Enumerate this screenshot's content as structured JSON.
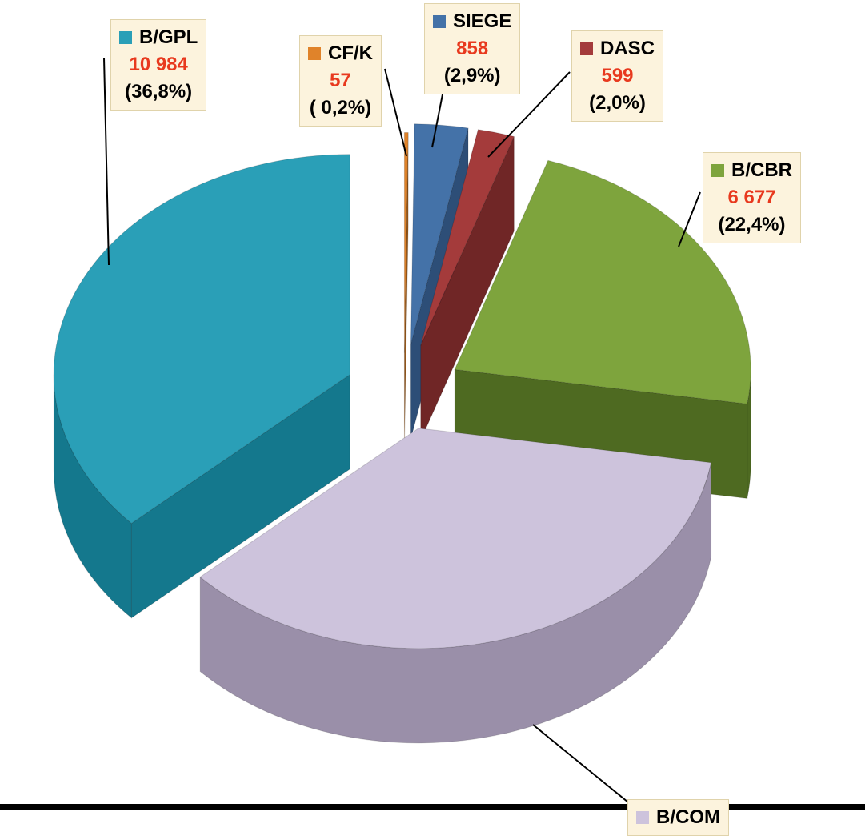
{
  "style": {
    "background": "#ffffff",
    "callout_bg": "#fcf3dd",
    "callout_border": "#e0d3ab",
    "value_color": "#e8391e",
    "text_color": "#000000",
    "leader_line_color": "#000000",
    "bottom_border_color": "#000000"
  },
  "chart_data": {
    "type": "pie",
    "style_3d": true,
    "exploded": true,
    "order": "clockwise-from-top",
    "legend_position": "callouts",
    "series": [
      {
        "name": "CF/K",
        "value": 57,
        "value_label": "57",
        "pct": 0.2,
        "pct_label": "( 0,2%)",
        "color": "#e0832a",
        "side_color": "#96581b"
      },
      {
        "name": "SIEGE",
        "value": 858,
        "value_label": "858",
        "pct": 2.9,
        "pct_label": "(2,9%)",
        "color": "#4472a8",
        "side_color": "#2d4e77"
      },
      {
        "name": "DASC",
        "value": 599,
        "value_label": "599",
        "pct": 2.0,
        "pct_label": "(2,0%)",
        "color": "#a43b3b",
        "side_color": "#702626"
      },
      {
        "name": "B/CBR",
        "value": 6677,
        "value_label": "6 677",
        "pct": 22.4,
        "pct_label": "(22,4%)",
        "color": "#7ea43d",
        "side_color": "#4e6a21"
      },
      {
        "name": "B/COM",
        "value": null,
        "value_label": "",
        "pct": 35.7,
        "pct_label": "",
        "color": "#cdc3dc",
        "side_color": "#9a8fa9"
      },
      {
        "name": "B/GPL",
        "value": 10984,
        "value_label": "10 984",
        "pct": 36.8,
        "pct_label": "(36,8%)",
        "color": "#2a9fb7",
        "side_color": "#14788d"
      }
    ]
  }
}
